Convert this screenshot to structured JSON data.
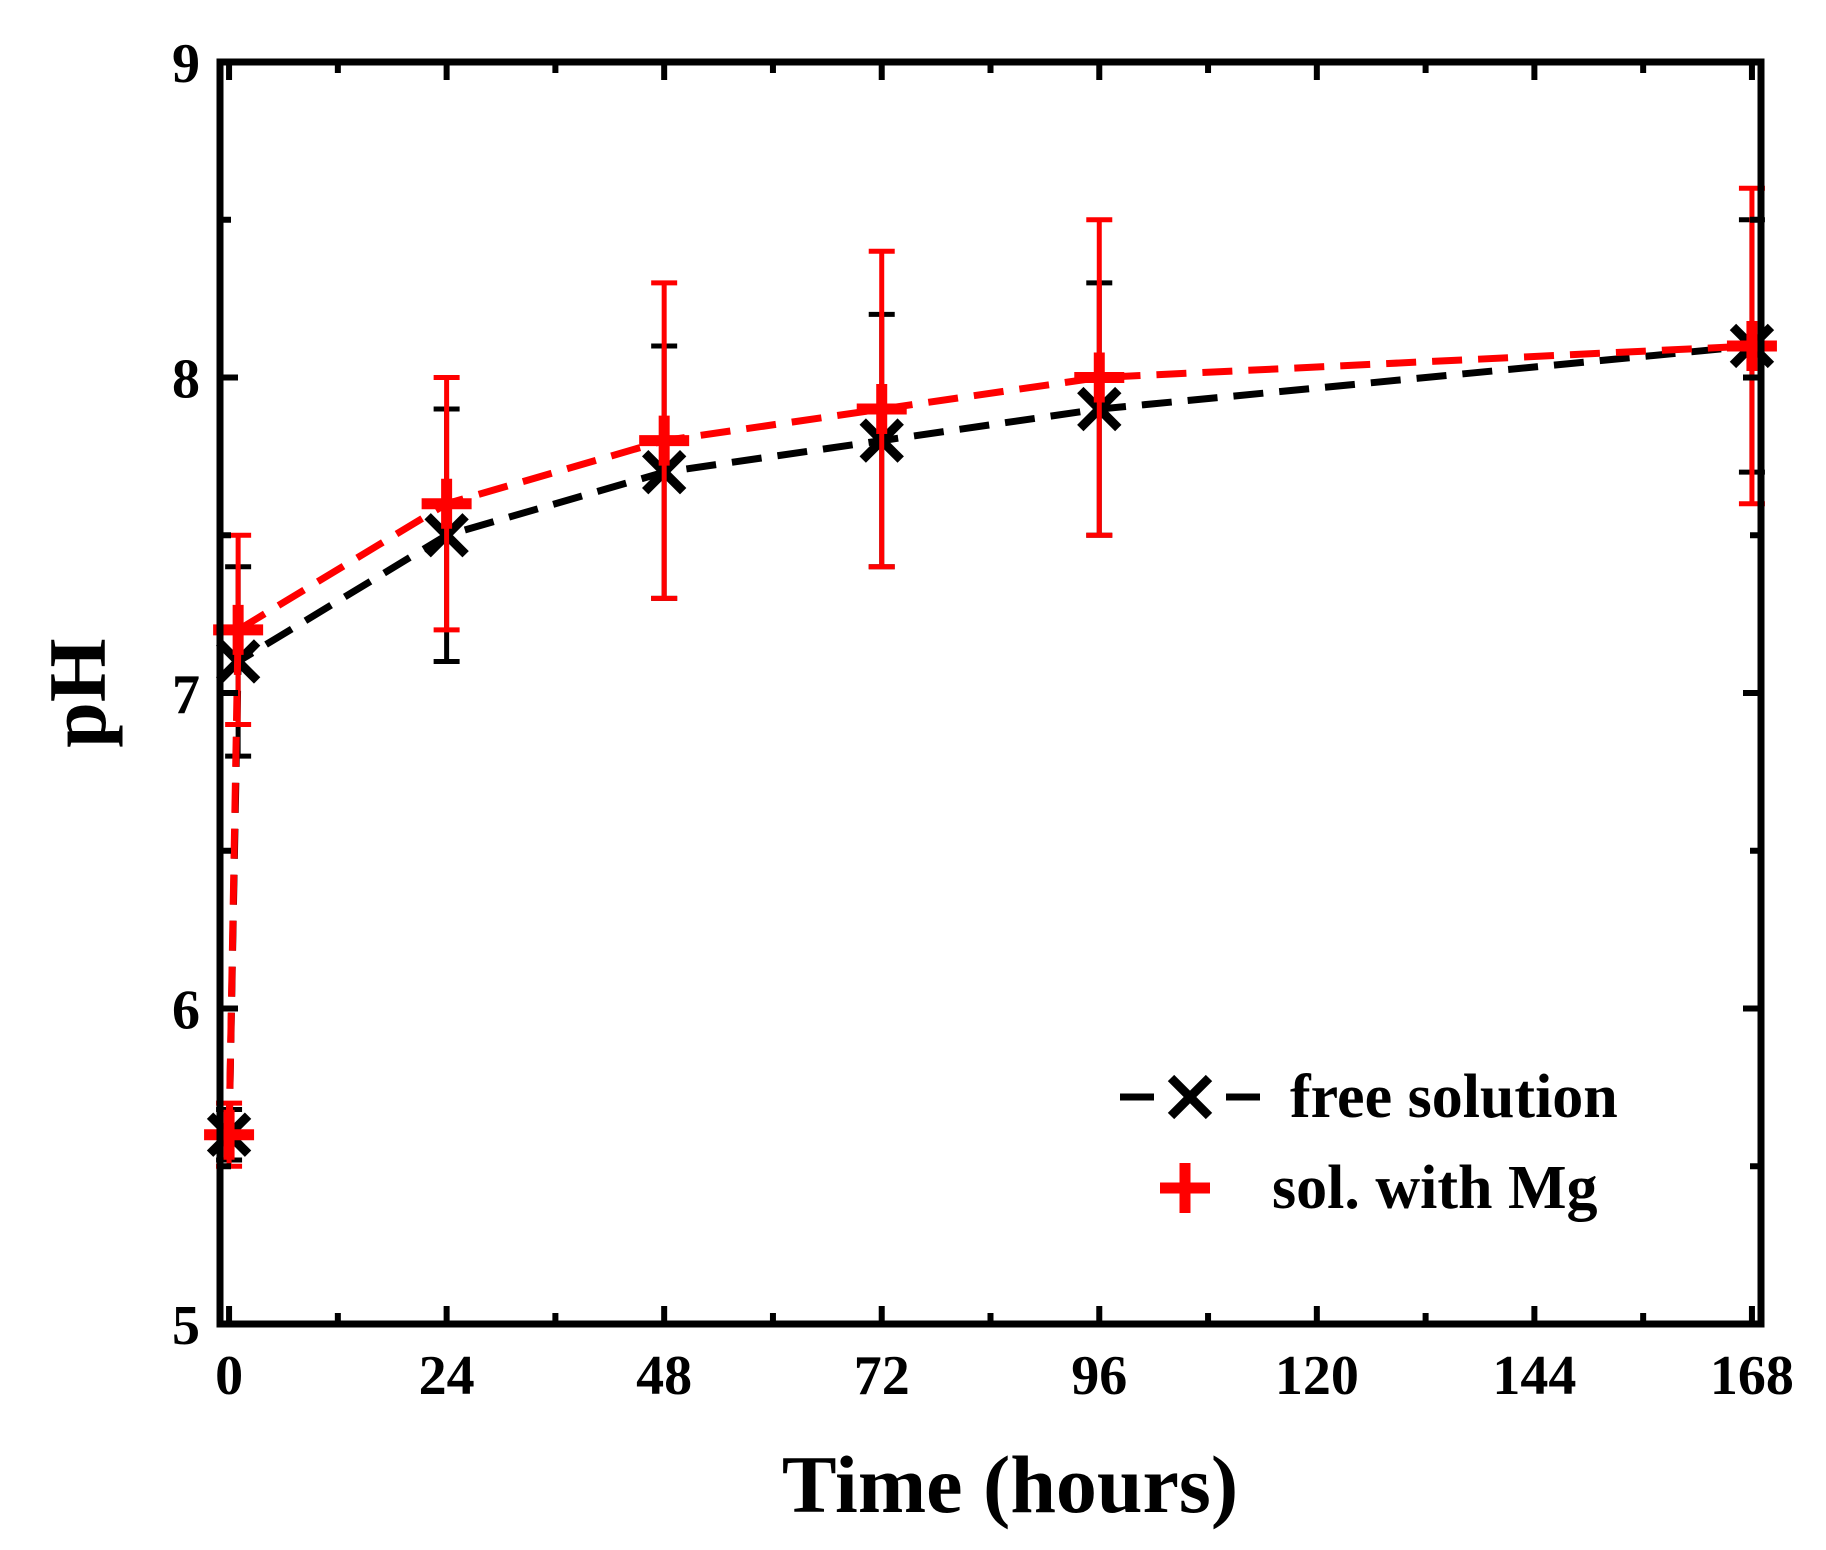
{
  "chart_data": {
    "type": "line",
    "title": "",
    "xlabel": "Time (hours)",
    "ylabel": "pH",
    "xlim": [
      -1,
      169
    ],
    "ylim": [
      5,
      9
    ],
    "xticks": [
      0,
      24,
      48,
      72,
      96,
      120,
      144,
      168
    ],
    "yticks": [
      5,
      6,
      7,
      8,
      9
    ],
    "tick_labels_x": [
      "0",
      "24",
      "48",
      "72",
      "96",
      "120",
      "144",
      "168"
    ],
    "tick_labels_y": [
      "5",
      "6",
      "7",
      "8",
      "9"
    ],
    "x": [
      0,
      1,
      24,
      48,
      72,
      96,
      168
    ],
    "legend_position": "bottom-right",
    "series": [
      {
        "name": "free solution",
        "marker": "x",
        "color": "#000000",
        "line_style": "dashed",
        "values": [
          5.6,
          7.1,
          7.5,
          7.7,
          7.8,
          7.9,
          8.1
        ],
        "error": [
          0.08,
          0.3,
          0.4,
          0.4,
          0.4,
          0.4,
          0.4
        ]
      },
      {
        "name": "sol. with Mg",
        "marker": "+",
        "color": "#ff0000",
        "line_style": "dashed",
        "values": [
          5.6,
          7.2,
          7.6,
          7.8,
          7.9,
          8.0,
          8.1
        ],
        "error": [
          0.1,
          0.3,
          0.4,
          0.5,
          0.5,
          0.5,
          0.5
        ]
      }
    ]
  }
}
